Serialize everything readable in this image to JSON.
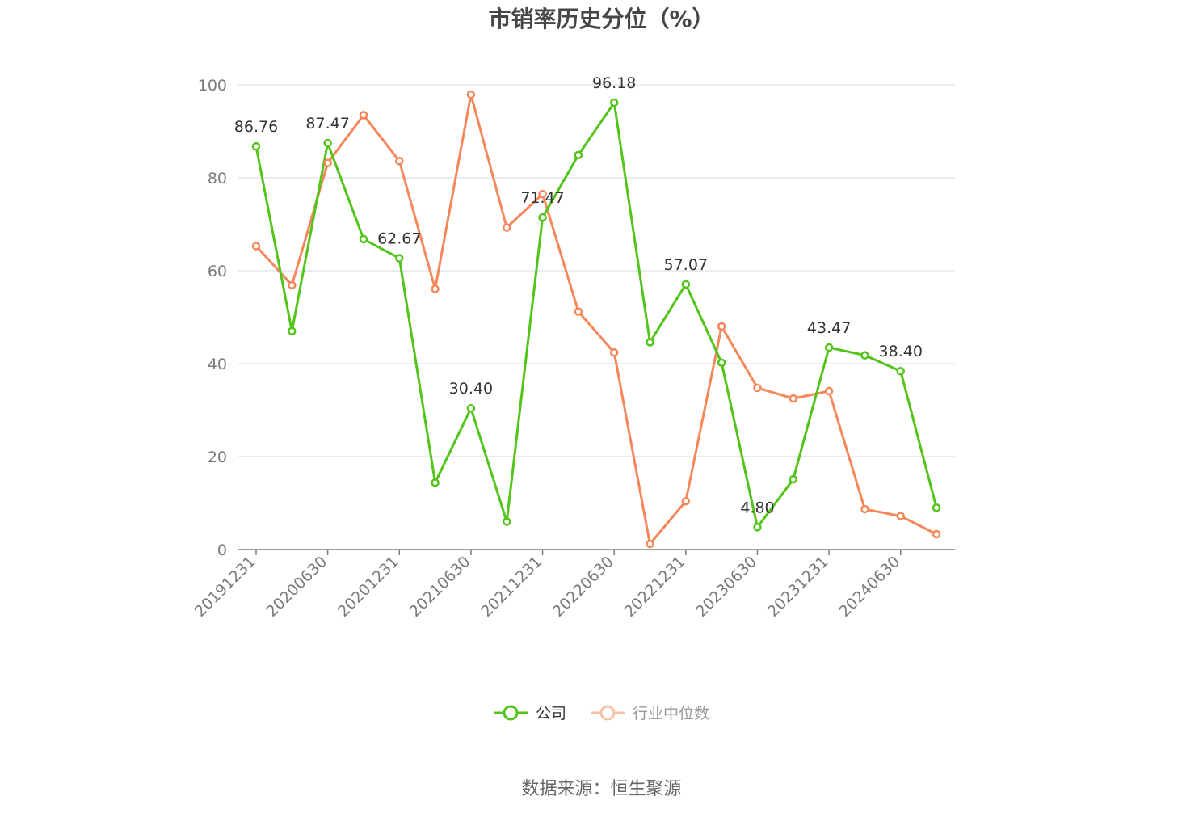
{
  "title": "市销率历史分位（%）",
  "source": "数据来源：恒生聚源",
  "legend": {
    "company": "公司",
    "industry": "行业中位数"
  },
  "colors": {
    "company": "#52c41a",
    "industry": "#f5875a",
    "industry_legend_faded": "#f9c1a8",
    "grid": "#e4e6f0",
    "axis": "#7a7a7a",
    "tick_text": "#7a7a7a",
    "label_text": "#333333"
  },
  "chart_data": {
    "type": "line",
    "title": "市销率历史分位（%）",
    "x": [
      "20191231",
      "20200331",
      "20200630",
      "20200930",
      "20201231",
      "20210331",
      "20210630",
      "20210930",
      "20211231",
      "20220331",
      "20220630",
      "20220930",
      "20221231",
      "20230331",
      "20230630",
      "20230930",
      "20231231",
      "20240331",
      "20240630",
      "20240930"
    ],
    "x_tick_labels": [
      "20191231",
      "20200630",
      "20201231",
      "20210630",
      "20211231",
      "20220630",
      "20221231",
      "20230630",
      "20231231",
      "20240630"
    ],
    "ylim": [
      0,
      100
    ],
    "y_ticks": [
      0,
      20,
      40,
      60,
      80,
      100
    ],
    "grid": true,
    "legend_position": "bottom-center",
    "series": [
      {
        "name": "公司",
        "values": [
          86.76,
          47.0,
          87.47,
          66.8,
          62.67,
          14.4,
          30.4,
          6.0,
          71.47,
          84.9,
          96.18,
          44.6,
          57.07,
          40.2,
          4.8,
          15.1,
          43.47,
          41.8,
          38.4,
          9.0
        ],
        "labels": {
          "0": "86.76",
          "2": "87.47",
          "4": "62.67",
          "6": "30.40",
          "8": "71.47",
          "10": "96.18",
          "12": "57.07",
          "14": "4.80",
          "16": "43.47",
          "18": "38.40"
        }
      },
      {
        "name": "行业中位数",
        "values": [
          65.3,
          56.9,
          83.2,
          93.5,
          83.6,
          56.1,
          97.9,
          69.3,
          76.5,
          51.2,
          42.4,
          1.2,
          10.4,
          48.0,
          34.8,
          32.5,
          34.1,
          8.7,
          7.2,
          3.3
        ]
      }
    ]
  }
}
